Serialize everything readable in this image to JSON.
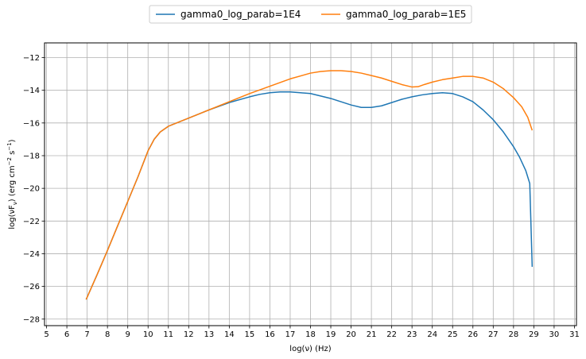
{
  "chart_data": {
    "type": "line",
    "title": "",
    "xlabel": "log(ν)  (Hz)",
    "ylabel_main": "log(νF",
    "ylabel_sub": "ν",
    "ylabel_units": ")  (erg cm",
    "ylabel_exp1": "−2",
    "ylabel_s": "  s",
    "ylabel_exp2": "−1",
    "ylabel_close": ")",
    "xlim": [
      4.9,
      31.1
    ],
    "ylim": [
      -28.4,
      -11.1
    ],
    "xticks": [
      5,
      6,
      7,
      8,
      9,
      10,
      11,
      12,
      13,
      14,
      15,
      16,
      17,
      18,
      19,
      20,
      21,
      22,
      23,
      24,
      25,
      26,
      27,
      28,
      29,
      30,
      31
    ],
    "yticks": [
      -28,
      -26,
      -24,
      -22,
      -20,
      -18,
      -16,
      -14,
      -12
    ],
    "grid": true,
    "legend_placement": "top-center",
    "series": [
      {
        "name": "gamma0_log_parab=1E4",
        "color": "#1f77b4",
        "points": [
          [
            6.95,
            -26.8
          ],
          [
            7.5,
            -25.25
          ],
          [
            8.0,
            -23.8
          ],
          [
            8.5,
            -22.3
          ],
          [
            9.0,
            -20.8
          ],
          [
            9.5,
            -19.3
          ],
          [
            10.0,
            -17.7
          ],
          [
            10.3,
            -17.0
          ],
          [
            10.6,
            -16.55
          ],
          [
            11.0,
            -16.2
          ],
          [
            11.5,
            -15.95
          ],
          [
            12.0,
            -15.7
          ],
          [
            13.0,
            -15.2
          ],
          [
            14.0,
            -14.75
          ],
          [
            15.0,
            -14.4
          ],
          [
            15.5,
            -14.25
          ],
          [
            16.0,
            -14.15
          ],
          [
            16.5,
            -14.1
          ],
          [
            17.0,
            -14.1
          ],
          [
            17.5,
            -14.15
          ],
          [
            18.0,
            -14.2
          ],
          [
            18.5,
            -14.35
          ],
          [
            19.0,
            -14.5
          ],
          [
            19.5,
            -14.7
          ],
          [
            20.0,
            -14.9
          ],
          [
            20.5,
            -15.05
          ],
          [
            21.0,
            -15.05
          ],
          [
            21.5,
            -14.95
          ],
          [
            22.0,
            -14.75
          ],
          [
            22.5,
            -14.55
          ],
          [
            23.0,
            -14.4
          ],
          [
            23.5,
            -14.28
          ],
          [
            24.0,
            -14.2
          ],
          [
            24.5,
            -14.15
          ],
          [
            25.0,
            -14.2
          ],
          [
            25.5,
            -14.4
          ],
          [
            26.0,
            -14.7
          ],
          [
            26.5,
            -15.2
          ],
          [
            27.0,
            -15.8
          ],
          [
            27.5,
            -16.55
          ],
          [
            28.0,
            -17.45
          ],
          [
            28.3,
            -18.1
          ],
          [
            28.6,
            -18.9
          ],
          [
            28.8,
            -19.7
          ],
          [
            28.92,
            -24.8
          ]
        ]
      },
      {
        "name": "gamma0_log_parab=1E5",
        "color": "#ff7f0e",
        "points": [
          [
            6.95,
            -26.8
          ],
          [
            7.5,
            -25.25
          ],
          [
            8.0,
            -23.8
          ],
          [
            8.5,
            -22.3
          ],
          [
            9.0,
            -20.8
          ],
          [
            9.5,
            -19.3
          ],
          [
            10.0,
            -17.7
          ],
          [
            10.3,
            -17.0
          ],
          [
            10.6,
            -16.55
          ],
          [
            11.0,
            -16.2
          ],
          [
            11.5,
            -15.95
          ],
          [
            12.0,
            -15.7
          ],
          [
            13.0,
            -15.2
          ],
          [
            14.0,
            -14.7
          ],
          [
            15.0,
            -14.2
          ],
          [
            16.0,
            -13.75
          ],
          [
            17.0,
            -13.3
          ],
          [
            18.0,
            -12.95
          ],
          [
            18.5,
            -12.85
          ],
          [
            19.0,
            -12.8
          ],
          [
            19.5,
            -12.8
          ],
          [
            20.0,
            -12.85
          ],
          [
            20.5,
            -12.95
          ],
          [
            21.0,
            -13.1
          ],
          [
            21.5,
            -13.25
          ],
          [
            22.0,
            -13.45
          ],
          [
            22.5,
            -13.65
          ],
          [
            23.0,
            -13.8
          ],
          [
            23.3,
            -13.78
          ],
          [
            23.6,
            -13.65
          ],
          [
            24.0,
            -13.5
          ],
          [
            24.5,
            -13.35
          ],
          [
            25.0,
            -13.25
          ],
          [
            25.5,
            -13.15
          ],
          [
            26.0,
            -13.15
          ],
          [
            26.5,
            -13.25
          ],
          [
            27.0,
            -13.5
          ],
          [
            27.5,
            -13.9
          ],
          [
            28.0,
            -14.45
          ],
          [
            28.4,
            -15.0
          ],
          [
            28.7,
            -15.65
          ],
          [
            28.92,
            -16.45
          ]
        ]
      }
    ]
  }
}
